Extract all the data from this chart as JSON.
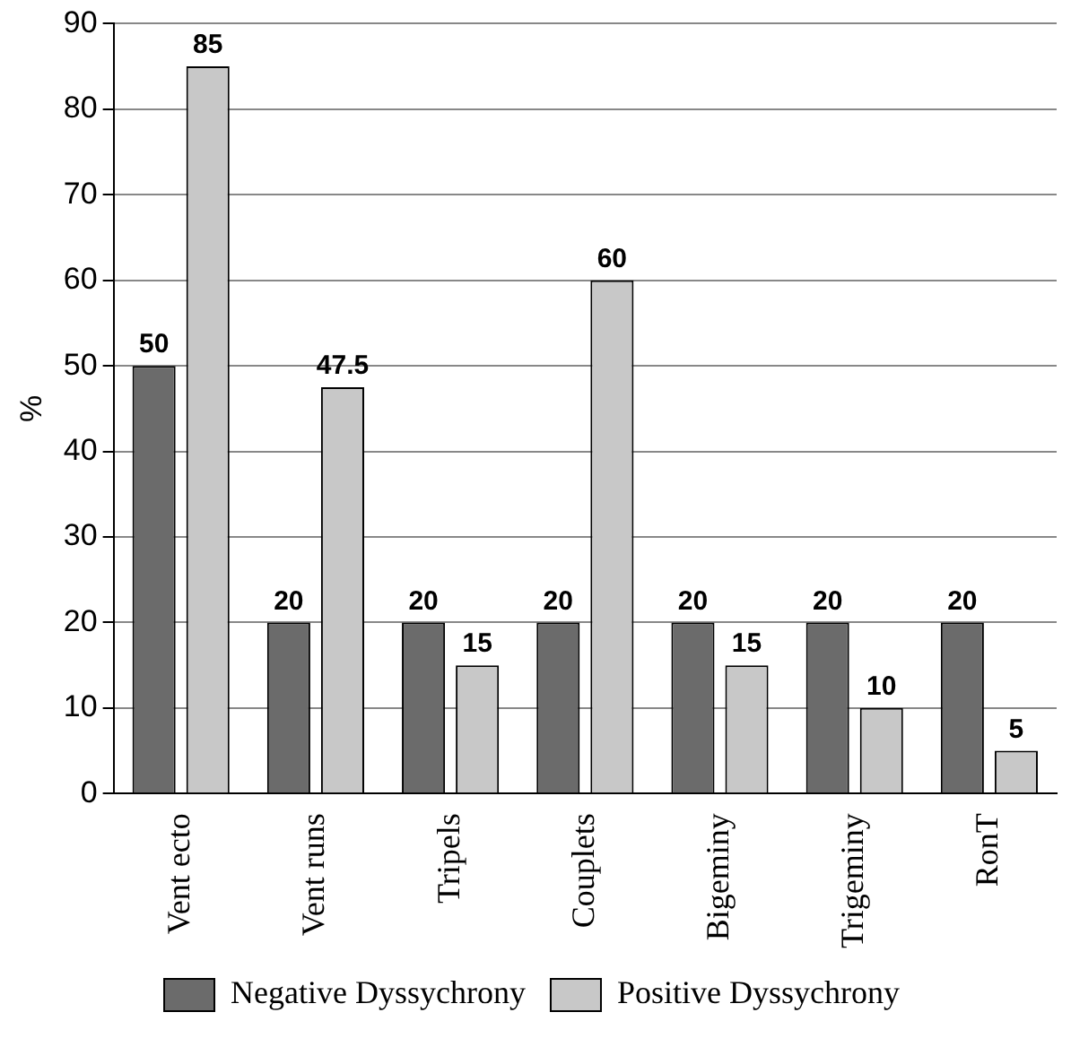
{
  "chart_data": {
    "type": "bar",
    "ylabel": "%",
    "categories": [
      "Vent ecto",
      "Vent runs",
      "Tripels",
      "Couplets",
      "Bigeminy",
      "Trigeminy",
      "RonT"
    ],
    "series": [
      {
        "name": "Negative Dyssychrony",
        "color": "#6b6b6b",
        "values": [
          50,
          20,
          20,
          20,
          20,
          20,
          20
        ]
      },
      {
        "name": "Positive Dyssychrony",
        "color": "#c8c8c8",
        "values": [
          85,
          47.5,
          15,
          60,
          15,
          10,
          5
        ]
      }
    ],
    "ylim": [
      0,
      90
    ],
    "yticks": [
      0,
      10,
      20,
      30,
      40,
      50,
      60,
      70,
      80,
      90
    ],
    "grid": "y",
    "legend": "bottom",
    "data_labels": true
  }
}
